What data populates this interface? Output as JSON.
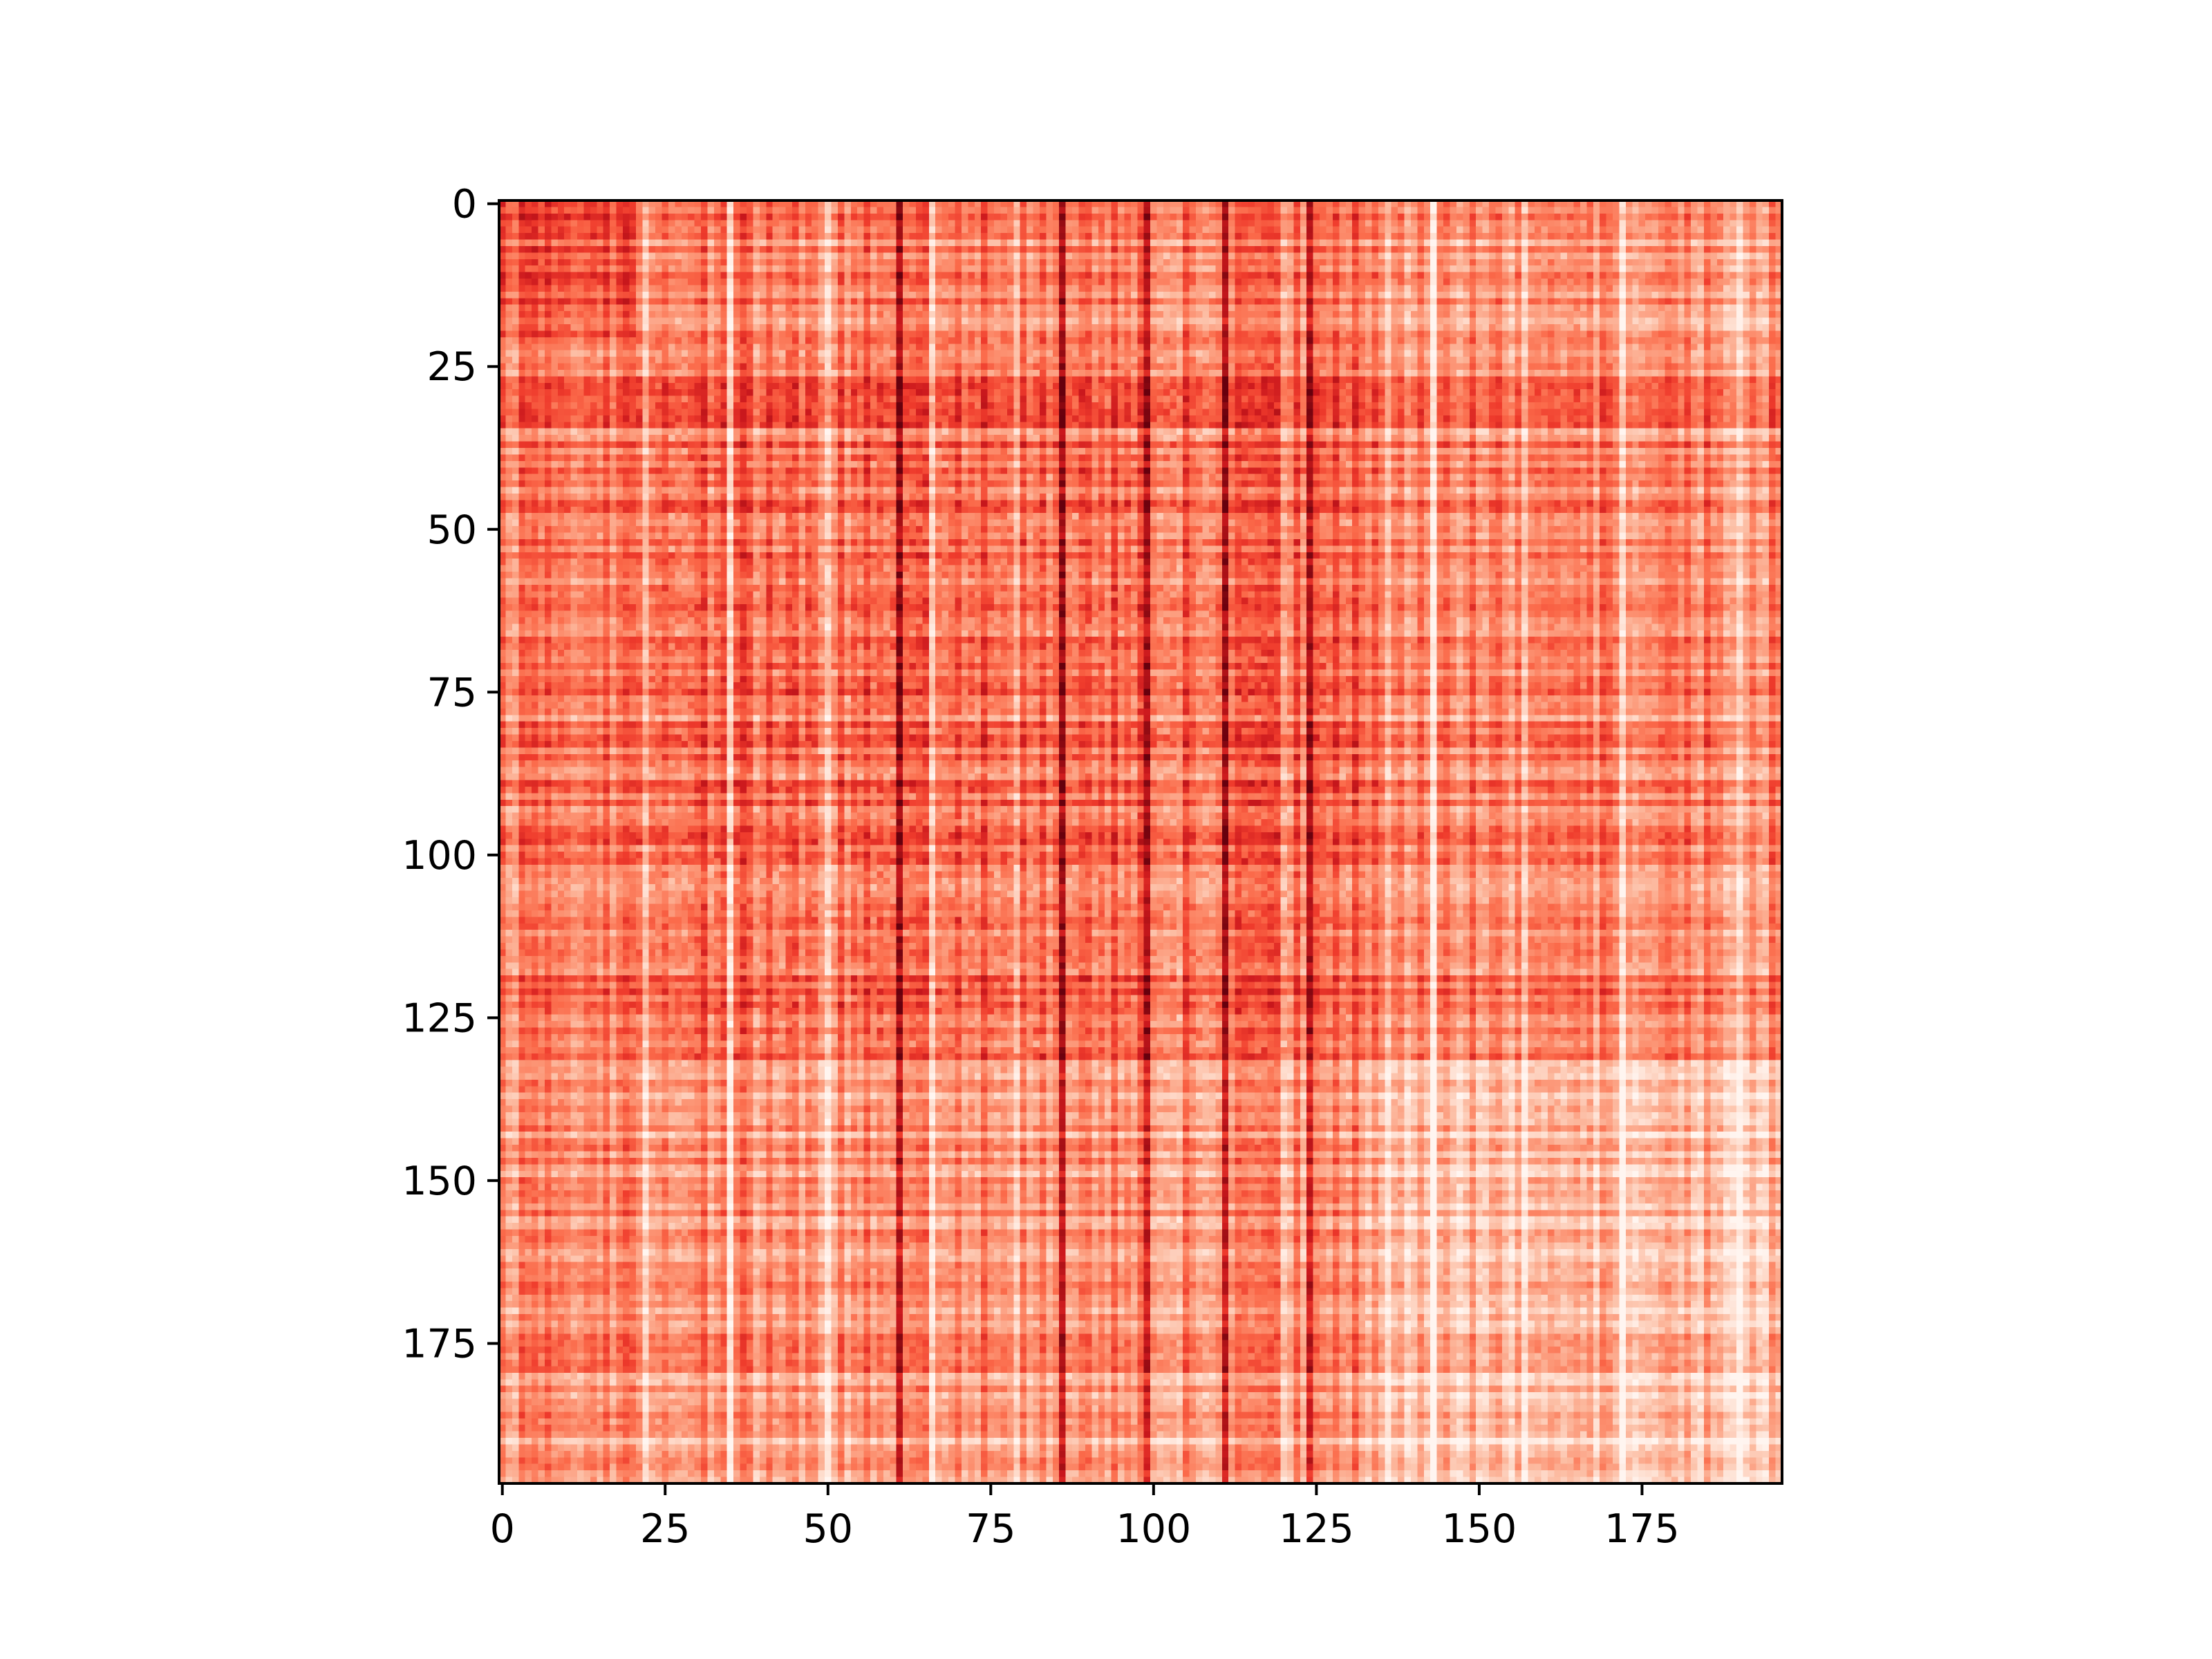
{
  "chart_data": {
    "type": "heatmap",
    "title": "",
    "xlabel": "",
    "ylabel": "",
    "colormap": "Reds",
    "colors": {
      "low": "#fff5f0",
      "high": "#a50f15"
    },
    "rows": 197,
    "cols": 197,
    "xlim": [
      -0.5,
      196.5
    ],
    "ylim": [
      196.5,
      -0.5
    ],
    "x_ticks": [
      0,
      25,
      50,
      75,
      100,
      125,
      150,
      175
    ],
    "x_tick_labels": [
      "0",
      "25",
      "50",
      "75",
      "100",
      "125",
      "150",
      "175"
    ],
    "y_ticks": [
      0,
      25,
      50,
      75,
      100,
      125,
      150,
      175
    ],
    "y_tick_labels": [
      "0",
      "25",
      "50",
      "75",
      "100",
      "125",
      "150",
      "175"
    ],
    "block_boundaries": [
      0,
      21,
      132,
      197
    ],
    "block_intensity": [
      [
        0.56,
        0.44,
        0.36
      ],
      [
        0.46,
        0.5,
        0.42
      ],
      [
        0.4,
        0.38,
        0.24
      ]
    ],
    "dark_columns": [
      61,
      86,
      99,
      111,
      124
    ],
    "light_columns": [
      22,
      35,
      50,
      66,
      79,
      104,
      120,
      136,
      143,
      157,
      172,
      190
    ],
    "grid": false,
    "legend": "none"
  }
}
